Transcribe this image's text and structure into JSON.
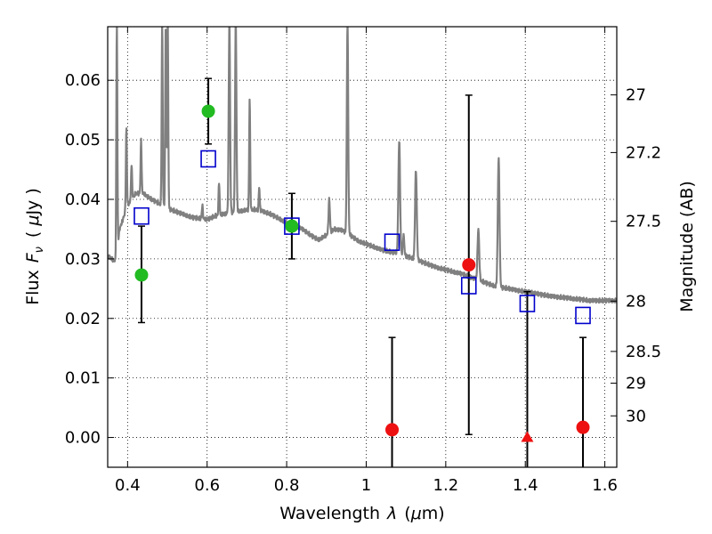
{
  "chart_data": {
    "type": "scatter",
    "xlabel_parts": [
      "Wavelength",
      "λ",
      "(",
      "μ",
      "m)"
    ],
    "ylabel_parts": [
      "Flux",
      "F",
      "ν",
      "(",
      "μ",
      "Jy )"
    ],
    "y2label": "Magnitude (AB)",
    "xlim": [
      0.35,
      1.63
    ],
    "ylim": [
      -0.005,
      0.069
    ],
    "grid": true,
    "x_ticks": [
      0.4,
      0.6,
      0.8,
      1,
      1.2,
      1.4,
      1.6
    ],
    "x_tick_labels": [
      "0.4",
      "0.6",
      "0.8",
      "1",
      "1.2",
      "1.4",
      "1.6"
    ],
    "y_ticks": [
      0.0,
      0.01,
      0.02,
      0.03,
      0.04,
      0.05,
      0.06
    ],
    "y_tick_labels": [
      "0.00",
      "0.01",
      "0.02",
      "0.03",
      "0.04",
      "0.05",
      "0.06"
    ],
    "mag_ticks": [
      27,
      27.2,
      27.5,
      28,
      28.5,
      29,
      30
    ],
    "mag_tick_labels": [
      "27",
      "27.2",
      "27.5",
      "28",
      "28.5",
      "29",
      "30"
    ],
    "colors": {
      "spectrum": "#808080",
      "model_box": "#0000cc",
      "green_point": "#22bb22",
      "red_point": "#ee1111",
      "error_bar": "#000000"
    },
    "spectrum": {
      "name": "",
      "continuum": [
        [
          0.35,
          0.0305
        ],
        [
          0.37,
          0.0295
        ],
        [
          0.38,
          0.035
        ],
        [
          0.4,
          0.039
        ],
        [
          0.42,
          0.041
        ],
        [
          0.44,
          0.041
        ],
        [
          0.46,
          0.04
        ],
        [
          0.48,
          0.0393
        ],
        [
          0.5,
          0.0385
        ],
        [
          0.52,
          0.038
        ],
        [
          0.54,
          0.0375
        ],
        [
          0.56,
          0.037
        ],
        [
          0.58,
          0.0368
        ],
        [
          0.6,
          0.0366
        ],
        [
          0.62,
          0.0372
        ],
        [
          0.64,
          0.0375
        ],
        [
          0.66,
          0.0378
        ],
        [
          0.68,
          0.038
        ],
        [
          0.7,
          0.0382
        ],
        [
          0.72,
          0.0383
        ],
        [
          0.74,
          0.038
        ],
        [
          0.76,
          0.0375
        ],
        [
          0.78,
          0.0368
        ],
        [
          0.8,
          0.036
        ],
        [
          0.82,
          0.0355
        ],
        [
          0.84,
          0.035
        ],
        [
          0.86,
          0.034
        ],
        [
          0.88,
          0.0332
        ],
        [
          0.9,
          0.034
        ],
        [
          0.92,
          0.035
        ],
        [
          0.94,
          0.0348
        ],
        [
          0.96,
          0.034
        ],
        [
          0.98,
          0.033
        ],
        [
          1.0,
          0.0325
        ],
        [
          1.02,
          0.032
        ],
        [
          1.04,
          0.0315
        ],
        [
          1.06,
          0.0312
        ],
        [
          1.08,
          0.031
        ],
        [
          1.1,
          0.0305
        ],
        [
          1.12,
          0.03
        ],
        [
          1.14,
          0.0295
        ],
        [
          1.16,
          0.029
        ],
        [
          1.18,
          0.0285
        ],
        [
          1.2,
          0.0282
        ],
        [
          1.22,
          0.0278
        ],
        [
          1.24,
          0.0275
        ],
        [
          1.26,
          0.027
        ],
        [
          1.28,
          0.0265
        ],
        [
          1.3,
          0.026
        ],
        [
          1.32,
          0.0255
        ],
        [
          1.34,
          0.0252
        ],
        [
          1.36,
          0.025
        ],
        [
          1.38,
          0.0247
        ],
        [
          1.4,
          0.0245
        ],
        [
          1.42,
          0.0243
        ],
        [
          1.44,
          0.024
        ],
        [
          1.46,
          0.0238
        ],
        [
          1.48,
          0.0236
        ],
        [
          1.5,
          0.0235
        ],
        [
          1.52,
          0.0233
        ],
        [
          1.54,
          0.0232
        ],
        [
          1.56,
          0.023
        ],
        [
          1.58,
          0.023
        ],
        [
          1.6,
          0.023
        ],
        [
          1.63,
          0.023
        ]
      ],
      "emission_lines": [
        {
          "x": 0.373,
          "peak": 0.07,
          "w": 0.003
        },
        {
          "x": 0.397,
          "peak": 0.052,
          "w": 0.003
        },
        {
          "x": 0.41,
          "peak": 0.046,
          "w": 0.003
        },
        {
          "x": 0.434,
          "peak": 0.05,
          "w": 0.003
        },
        {
          "x": 0.487,
          "peak": 0.07,
          "w": 0.003
        },
        {
          "x": 0.496,
          "peak": 0.07,
          "w": 0.003
        },
        {
          "x": 0.501,
          "peak": 0.07,
          "w": 0.003
        },
        {
          "x": 0.588,
          "peak": 0.039,
          "w": 0.003
        },
        {
          "x": 0.63,
          "peak": 0.043,
          "w": 0.003
        },
        {
          "x": 0.656,
          "peak": 0.07,
          "w": 0.004
        },
        {
          "x": 0.672,
          "peak": 0.07,
          "w": 0.004
        },
        {
          "x": 0.707,
          "peak": 0.057,
          "w": 0.003
        },
        {
          "x": 0.731,
          "peak": 0.042,
          "w": 0.003
        },
        {
          "x": 0.907,
          "peak": 0.04,
          "w": 0.004
        },
        {
          "x": 0.953,
          "peak": 0.07,
          "w": 0.004
        },
        {
          "x": 1.083,
          "peak": 0.05,
          "w": 0.005
        },
        {
          "x": 1.094,
          "peak": 0.034,
          "w": 0.004
        },
        {
          "x": 1.125,
          "peak": 0.045,
          "w": 0.005
        },
        {
          "x": 1.282,
          "peak": 0.035,
          "w": 0.005
        },
        {
          "x": 1.333,
          "peak": 0.047,
          "w": 0.005
        }
      ]
    },
    "model_points": {
      "name": "",
      "x": [
        0.435,
        0.603,
        0.813,
        1.065,
        1.258,
        1.405,
        1.545
      ],
      "y": [
        0.0372,
        0.0468,
        0.0355,
        0.0328,
        0.0255,
        0.0225,
        0.0205
      ]
    },
    "observed_points": {
      "name": "",
      "points": [
        {
          "x": 0.435,
          "y": 0.0273,
          "yerr_low": 0.0193,
          "yerr_high": 0.0355,
          "color": "green",
          "marker": "circle"
        },
        {
          "x": 0.603,
          "y": 0.0548,
          "yerr_low": 0.0493,
          "yerr_high": 0.0603,
          "color": "green",
          "marker": "circle"
        },
        {
          "x": 0.813,
          "y": 0.0355,
          "yerr_low": 0.03,
          "yerr_high": 0.041,
          "color": "green",
          "marker": "circle"
        },
        {
          "x": 1.065,
          "y": 0.0013,
          "yerr_low": -0.005,
          "yerr_high": 0.0168,
          "color": "red",
          "marker": "circle"
        },
        {
          "x": 1.258,
          "y": 0.029,
          "yerr_low": 0.0005,
          "yerr_high": 0.0575,
          "color": "red",
          "marker": "circle"
        },
        {
          "x": 1.405,
          "y": 0.0,
          "yerr_low": -0.005,
          "yerr_high": 0.0245,
          "color": "red",
          "marker": "triangle"
        },
        {
          "x": 1.545,
          "y": 0.0017,
          "yerr_low": -0.005,
          "yerr_high": 0.0168,
          "color": "red",
          "marker": "circle"
        }
      ]
    }
  }
}
